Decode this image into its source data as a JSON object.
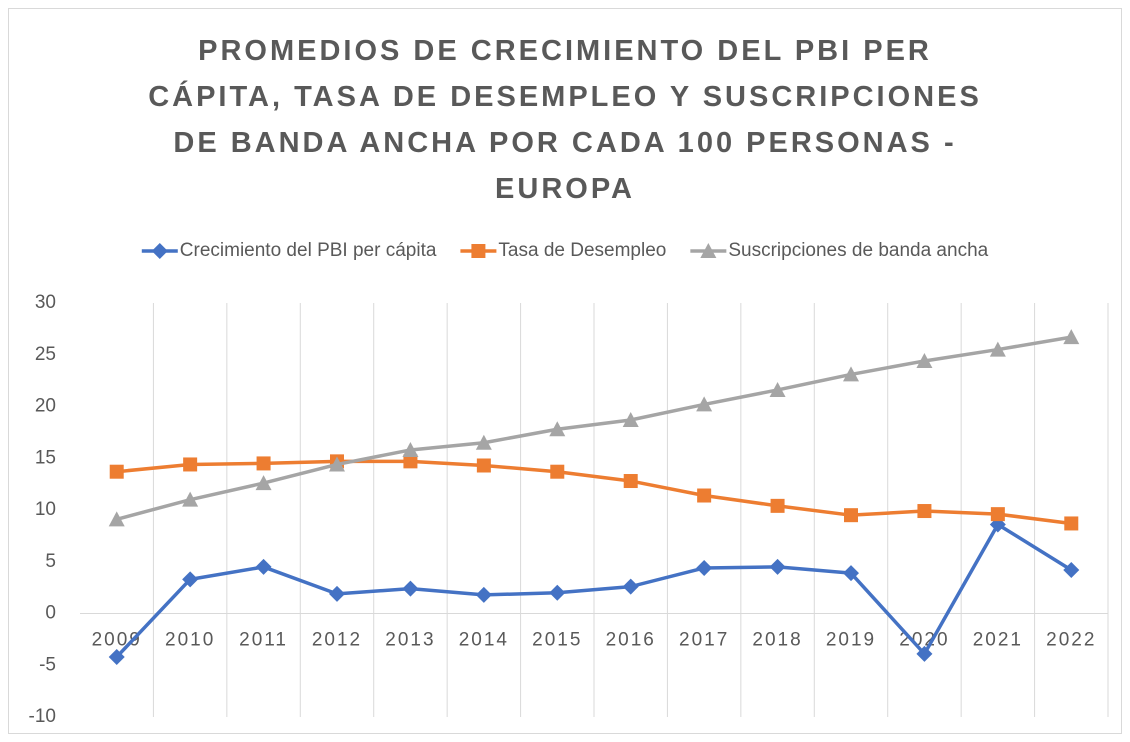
{
  "chart_data": {
    "type": "line",
    "title": "PROMEDIOS DE CRECIMIENTO DEL PBI PER CÁPITA, TASA DE DESEMPLEO Y SUSCRIPCIONES DE BANDA ANCHA POR CADA 100 PERSONAS - EUROPA",
    "categories": [
      "2009",
      "2010",
      "2011",
      "2012",
      "2013",
      "2014",
      "2015",
      "2016",
      "2017",
      "2018",
      "2019",
      "2020",
      "2021",
      "2022"
    ],
    "series": [
      {
        "name": "Crecimiento del PBI per cápita",
        "color": "#4472c4",
        "marker": "diamond",
        "values": [
          -4.2,
          3.3,
          4.5,
          1.9,
          2.4,
          1.8,
          2.0,
          2.6,
          4.4,
          4.5,
          3.9,
          -3.9,
          8.6,
          4.2
        ]
      },
      {
        "name": "Tasa de Desempleo",
        "color": "#ed7d31",
        "marker": "square",
        "values": [
          13.7,
          14.4,
          14.5,
          14.7,
          14.7,
          14.3,
          13.7,
          12.8,
          11.4,
          10.4,
          9.5,
          9.9,
          9.6,
          8.7
        ]
      },
      {
        "name": "Suscripciones de banda ancha",
        "color": "#a5a5a5",
        "marker": "triangle",
        "values": [
          9.1,
          11.0,
          12.6,
          14.4,
          15.8,
          16.5,
          17.8,
          18.7,
          20.2,
          21.6,
          23.1,
          24.4,
          25.5,
          26.7
        ]
      }
    ],
    "ylim": [
      -10,
      30
    ],
    "yticks": [
      -10,
      -5,
      0,
      5,
      10,
      15,
      20,
      25,
      30
    ],
    "grid": true,
    "legend": "top"
  }
}
